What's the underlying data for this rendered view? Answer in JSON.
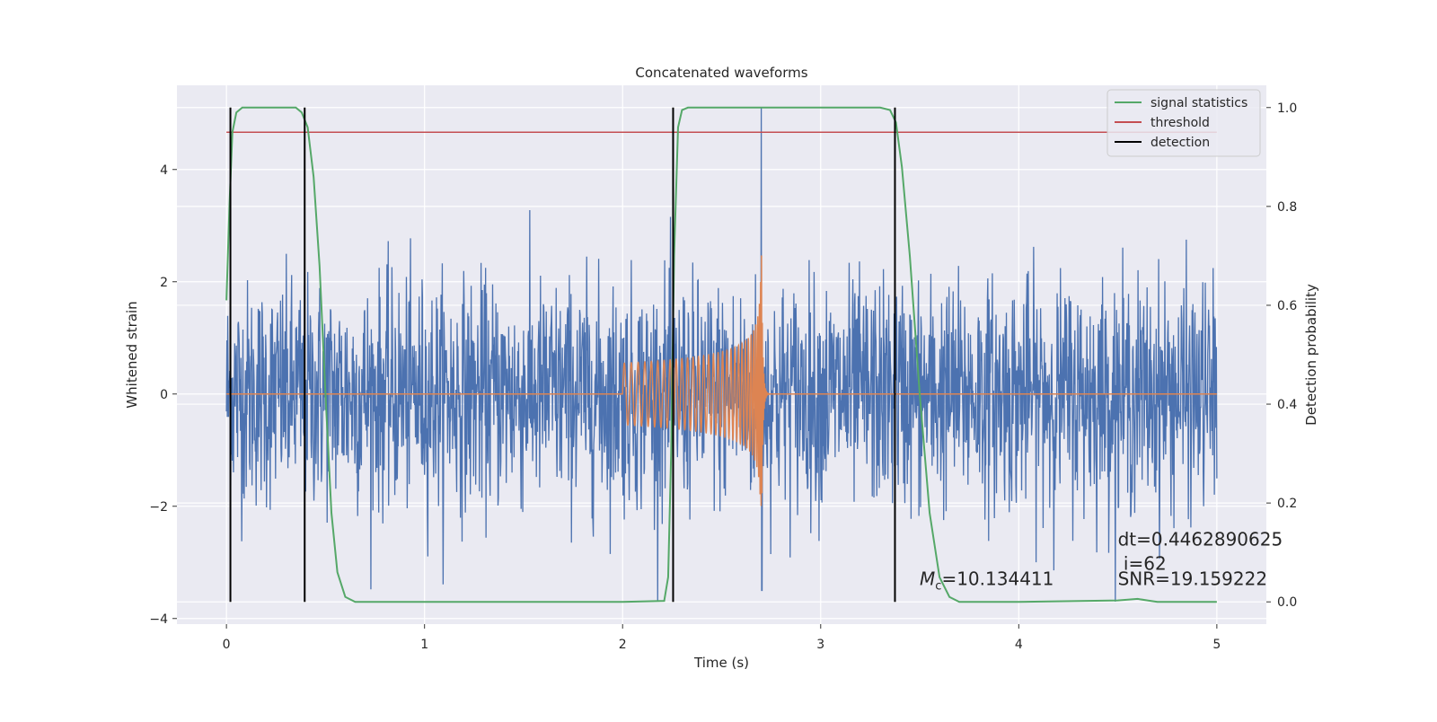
{
  "chart_data": {
    "type": "line",
    "title": "Concatenated waveforms",
    "xlabel": "Time (s)",
    "ylabel": "Whitened strain",
    "y2label": "Detection probability",
    "xlim": [
      -0.25,
      5.25
    ],
    "ylim": [
      -4.1,
      5.5
    ],
    "y2lim": [
      -0.045,
      1.045
    ],
    "x_ticks": [
      "0",
      "1",
      "2",
      "3",
      "4",
      "5"
    ],
    "y_ticks": [
      "−4",
      "−2",
      "0",
      "2",
      "4"
    ],
    "y2_ticks": [
      "0.0",
      "0.2",
      "0.4",
      "0.6",
      "0.8",
      "1.0"
    ],
    "grid": true,
    "legend_placement": "top-right",
    "colors": {
      "background": "#eaeaf2",
      "strain": "#4c72b0",
      "template": "#dd8452",
      "signal_statistics": "#55a868",
      "threshold": "#c44e52",
      "detection": "#000000",
      "grid": "#ffffff"
    },
    "series": [
      {
        "name": "signal statistics",
        "axis": "right",
        "color": "#55a868",
        "x": [
          0,
          0.015,
          0.03,
          0.05,
          0.08,
          0.12,
          0.35,
          0.38,
          0.41,
          0.44,
          0.47,
          0.5,
          0.53,
          0.56,
          0.6,
          0.65,
          1.0,
          2.0,
          2.21,
          2.23,
          2.245,
          2.26,
          2.28,
          2.3,
          2.33,
          3.3,
          3.35,
          3.38,
          3.41,
          3.45,
          3.5,
          3.55,
          3.6,
          3.65,
          3.7,
          4.0,
          4.5,
          4.6,
          4.65,
          4.7,
          5.0
        ],
        "y": [
          0.61,
          0.8,
          0.95,
          0.99,
          1.0,
          1.0,
          1.0,
          0.99,
          0.96,
          0.86,
          0.68,
          0.42,
          0.18,
          0.06,
          0.01,
          0.0,
          0.0,
          0.0,
          0.002,
          0.05,
          0.3,
          0.7,
          0.96,
          0.995,
          1.0,
          1.0,
          0.995,
          0.97,
          0.88,
          0.7,
          0.42,
          0.18,
          0.05,
          0.01,
          0.0,
          0.0,
          0.003,
          0.006,
          0.003,
          0.0,
          0.0
        ]
      },
      {
        "name": "threshold",
        "axis": "right",
        "color": "#c44e52",
        "x": [
          0,
          5
        ],
        "y": [
          0.95,
          0.95
        ]
      },
      {
        "name": "detection",
        "axis": "right",
        "color": "#000000",
        "vlines": [
          0.02,
          0.395,
          2.255,
          3.375
        ],
        "y_range": [
          0.0,
          1.0
        ]
      },
      {
        "name": "",
        "axis": "left",
        "color": "#4c72b0",
        "kind": "noise",
        "x_range": [
          0,
          5
        ],
        "amplitude": 1.0,
        "max": 5.1,
        "min": -3.7,
        "peak_x": 2.7
      },
      {
        "name": "",
        "axis": "left",
        "color": "#dd8452",
        "kind": "chirp",
        "start": 2.0,
        "merger": 2.7,
        "end": 2.9,
        "start_amplitude": 0.55,
        "peak_amplitude": 3.3
      }
    ],
    "annotations": {
      "chirp_mass": {
        "symbol": "M",
        "subscript": "c",
        "value": "=10.134411",
        "x": 3.5,
        "y": -3.4
      },
      "dt": {
        "text": "dt=0.4462890625",
        "x": 4.5,
        "y": -2.7
      },
      "index": {
        "text": " i=62",
        "x": 4.5,
        "y": -3.13
      },
      "snr": {
        "text": "SNR=19.159222",
        "x": 4.5,
        "y": -3.4
      }
    }
  }
}
